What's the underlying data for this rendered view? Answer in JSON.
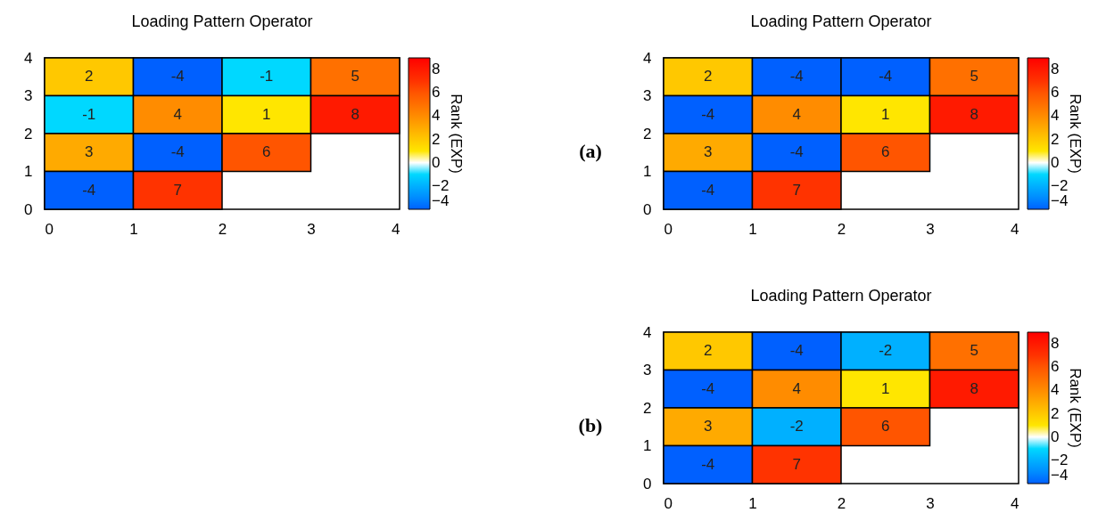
{
  "chart_data": [
    {
      "type": "heatmap",
      "title": "Loading Pattern Operator",
      "clabel": "Rank (EXP)",
      "xlim": [
        0,
        4
      ],
      "ylim": [
        0,
        4
      ],
      "xticks": [
        0,
        1,
        2,
        3,
        4
      ],
      "yticks": [
        0,
        1,
        2,
        3,
        4
      ],
      "clim": [
        -4,
        9
      ],
      "cticks": [
        -4,
        -2,
        0,
        2,
        4,
        6,
        8
      ],
      "data_labels": true,
      "cells": [
        [
          2,
          -4,
          -1,
          5
        ],
        [
          -1,
          4,
          1,
          8
        ],
        [
          3,
          -4,
          6,
          null
        ],
        [
          -4,
          7,
          null,
          null
        ]
      ]
    },
    {
      "type": "heatmap",
      "title": "Loading Pattern Operator",
      "clabel": "Rank (EXP)",
      "xlim": [
        0,
        4
      ],
      "ylim": [
        0,
        4
      ],
      "xticks": [
        0,
        1,
        2,
        3,
        4
      ],
      "yticks": [
        0,
        1,
        2,
        3,
        4
      ],
      "clim": [
        -4,
        9
      ],
      "cticks": [
        -4,
        -2,
        0,
        2,
        4,
        6,
        8
      ],
      "data_labels": true,
      "annotations": [
        "(a)"
      ],
      "cells": [
        [
          2,
          -4,
          -4,
          5
        ],
        [
          -4,
          4,
          1,
          8
        ],
        [
          3,
          -4,
          6,
          null
        ],
        [
          -4,
          7,
          null,
          null
        ]
      ]
    },
    {
      "type": "heatmap",
      "title": "Loading Pattern Operator",
      "clabel": "Rank (EXP)",
      "xlim": [
        0,
        4
      ],
      "ylim": [
        0,
        4
      ],
      "xticks": [
        0,
        1,
        2,
        3,
        4
      ],
      "yticks": [
        0,
        1,
        2,
        3,
        4
      ],
      "clim": [
        -4,
        9
      ],
      "cticks": [
        -4,
        -2,
        0,
        2,
        4,
        6,
        8
      ],
      "data_labels": true,
      "annotations": [
        "(b)"
      ],
      "cells": [
        [
          2,
          -4,
          -2,
          5
        ],
        [
          -4,
          4,
          1,
          8
        ],
        [
          3,
          -2,
          6,
          null
        ],
        [
          -4,
          7,
          null,
          null
        ]
      ]
    }
  ]
}
